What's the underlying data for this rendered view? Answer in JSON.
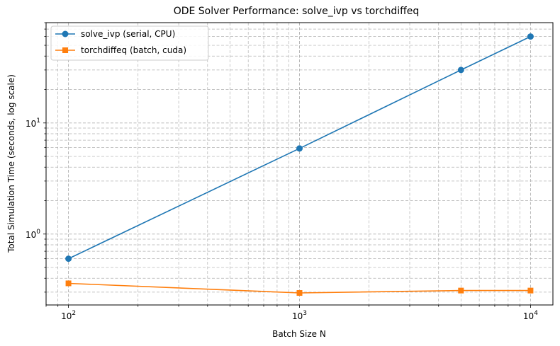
{
  "chart_data": {
    "type": "line",
    "title": "ODE Solver Performance: solve_ivp vs torchdiffeq",
    "xlabel": "Batch Size N",
    "ylabel": "Total Simulation Time (seconds, log scale)",
    "xscale": "log",
    "yscale": "log",
    "xlim": [
      80,
      12500
    ],
    "ylim": [
      0.23,
      80
    ],
    "grid": true,
    "legend_position": "top-left",
    "x": [
      100,
      1000,
      5000,
      10000
    ],
    "x_tick_labels": [
      {
        "base": "10",
        "exp": "2",
        "value": 100
      },
      {
        "base": "10",
        "exp": "3",
        "value": 1000
      },
      {
        "base": "10",
        "exp": "4",
        "value": 10000
      }
    ],
    "y_tick_labels": [
      {
        "base": "10",
        "exp": "0",
        "value": 1
      },
      {
        "base": "10",
        "exp": "1",
        "value": 10
      }
    ],
    "series": [
      {
        "name": "solve_ivp (serial, CPU)",
        "values": [
          0.6,
          5.9,
          30,
          60
        ],
        "color": "#1f77b4",
        "marker": "circle"
      },
      {
        "name": "torchdiffeq (batch, cuda)",
        "values": [
          0.36,
          0.295,
          0.31,
          0.31
        ],
        "color": "#ff7f0e",
        "marker": "square"
      }
    ]
  }
}
